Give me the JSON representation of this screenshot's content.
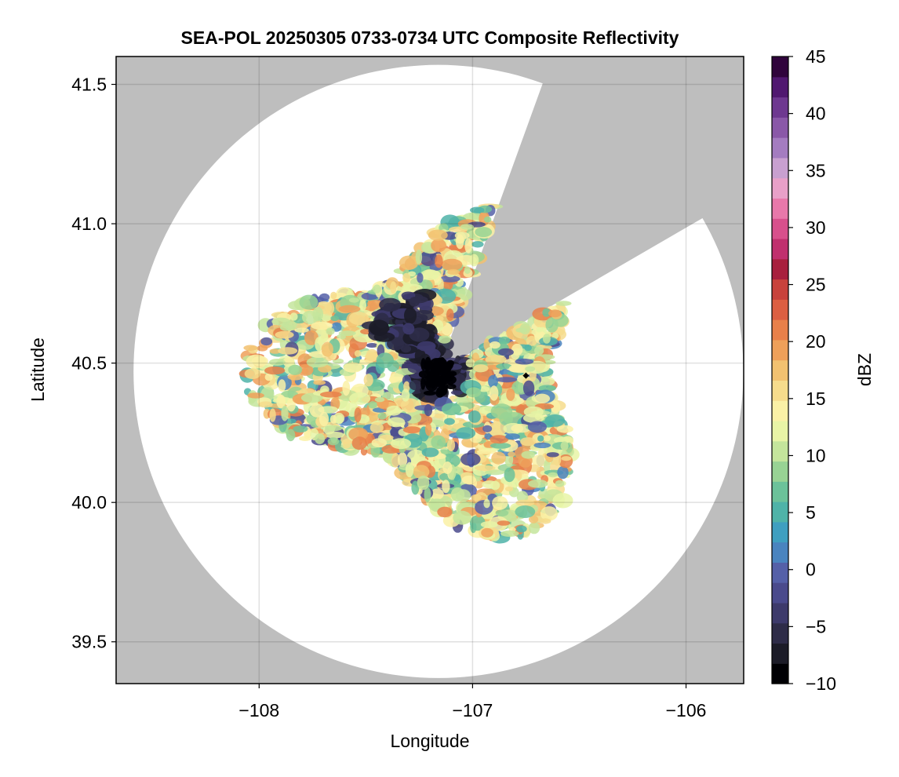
{
  "chart_data": {
    "type": "heatmap",
    "title": "SEA-POL 20250305 0733-0734 UTC Composite Reflectivity",
    "xlabel": "Longitude",
    "ylabel": "Latitude",
    "colorbar_label": "dBZ",
    "xlim": [
      -108.67,
      -105.73
    ],
    "ylim": [
      39.35,
      41.6
    ],
    "xticks": [
      -108,
      -107,
      -106
    ],
    "xtick_labels": [
      "−108",
      "−107",
      "−106"
    ],
    "yticks": [
      39.5,
      40.0,
      40.5,
      41.0,
      41.5
    ],
    "ytick_labels": [
      "39.5",
      "40.0",
      "40.5",
      "41.0",
      "41.5"
    ],
    "grid": true,
    "background_color": "#bebebe",
    "radar": {
      "center": [
        -107.16,
        40.47
      ],
      "max_range_lat_deg": 1.1,
      "blocked_sectors_deg": [
        [
          20,
          60
        ]
      ],
      "site_marker": [
        -106.75,
        40.455
      ]
    },
    "colorbar": {
      "min": -10,
      "max": 45,
      "step": 2.5,
      "ticks": [
        -10,
        -5,
        0,
        5,
        10,
        15,
        20,
        25,
        30,
        35,
        40,
        45
      ],
      "tick_labels": [
        "−10",
        "−5",
        "0",
        "5",
        "10",
        "15",
        "20",
        "25",
        "30",
        "35",
        "40",
        "45"
      ],
      "colors": [
        "#000004",
        "#1c1c28",
        "#2e2c48",
        "#3d3a6b",
        "#4a4a8c",
        "#5560a8",
        "#4a84bf",
        "#3f9fc0",
        "#4fb3a8",
        "#6cc29a",
        "#98d394",
        "#c4e59c",
        "#e8f4a6",
        "#faf1a6",
        "#f6dc8c",
        "#f2c170",
        "#eea05a",
        "#e8804a",
        "#dc5f42",
        "#c8423c",
        "#a8203e",
        "#c0306e",
        "#d8508c",
        "#e878aa",
        "#e8a0c8",
        "#c8a0d0",
        "#a47cc0",
        "#8a58a8",
        "#6e3890",
        "#501870",
        "#30043c"
      ]
    }
  }
}
